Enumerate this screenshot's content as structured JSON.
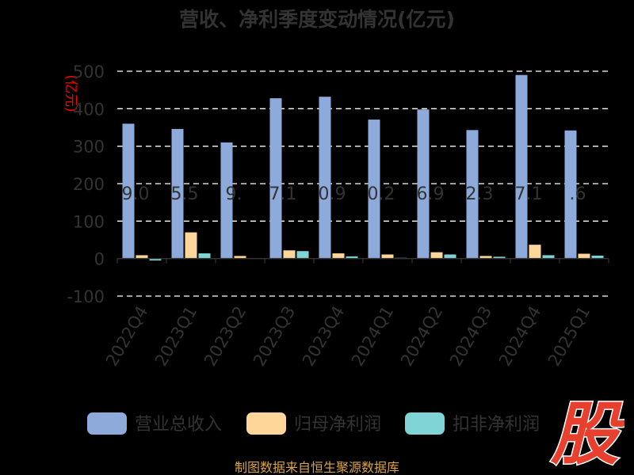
{
  "chart_data": {
    "type": "bar",
    "title": "营收、净利季度变动情况(亿元)",
    "ylabel": "(亿元)",
    "categories": [
      "2022Q4",
      "2023Q1",
      "2023Q2",
      "2023Q3",
      "2023Q4",
      "2024Q1",
      "2024Q2",
      "2024Q3",
      "2024Q4",
      "2025Q1"
    ],
    "series": [
      {
        "name": "营业总收入",
        "color": "#8eaadb",
        "values": [
          360,
          346,
          310,
          428,
          432,
          371,
          398,
          343,
          490,
          342
        ]
      },
      {
        "name": "归母净利润",
        "color": "#ffd699",
        "values": [
          9,
          70,
          7,
          22,
          14,
          11,
          17,
          7,
          37,
          13
        ]
      },
      {
        "name": "扣非净利润",
        "color": "#80d4d6",
        "values": [
          -5,
          14,
          1,
          20,
          6,
          2,
          11,
          5,
          9,
          8
        ]
      }
    ],
    "ylim": [
      -100,
      500
    ],
    "yticks": [
      -100,
      0,
      100,
      200,
      300,
      400,
      500
    ],
    "grid": true,
    "legend_position": "bottom",
    "data_labels": [
      "9.0",
      "5.5",
      "9.",
      "7.1",
      "0.9",
      "0.2",
      "6.9",
      "2.3",
      "7.1",
      ".6"
    ]
  },
  "footer": {
    "source": "制图数据来自恒生聚源数据库",
    "logo_text": "股"
  }
}
